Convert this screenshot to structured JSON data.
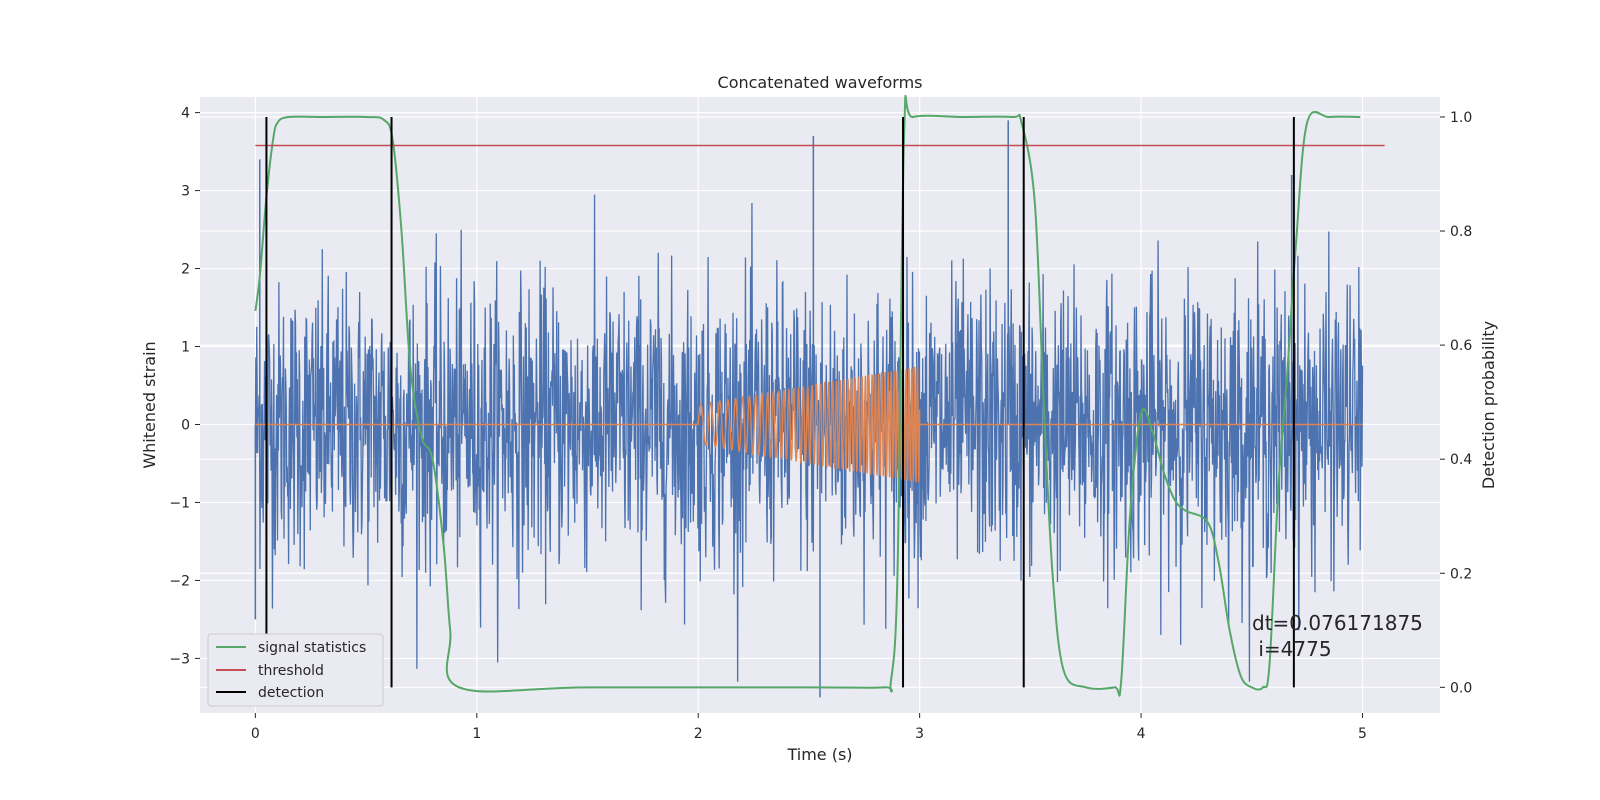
{
  "chart_data": {
    "type": "line",
    "title": "Concatenated waveforms",
    "xlabel": "Time (s)",
    "ylabel": "Whitened strain",
    "y2label": "Detection probability",
    "xlim": [
      -0.25,
      5.35
    ],
    "ylim": [
      -3.7,
      4.2
    ],
    "y2lim": [
      -0.045,
      1.035
    ],
    "xticks": [
      0,
      1,
      2,
      3,
      4,
      5
    ],
    "yticks": [
      -3,
      -2,
      -1,
      0,
      1,
      2,
      3,
      4
    ],
    "y2ticks": [
      0.0,
      0.2,
      0.4,
      0.6,
      0.8,
      1.0
    ],
    "xtick_labels": [
      "0",
      "1",
      "2",
      "3",
      "4",
      "5"
    ],
    "ytick_labels": [
      "−3",
      "−2",
      "−1",
      "0",
      "1",
      "2",
      "3",
      "4"
    ],
    "y2tick_labels": [
      "0.0",
      "0.2",
      "0.4",
      "0.6",
      "0.8",
      "1.0"
    ],
    "grid": true,
    "legend_position": "lower-left",
    "colors": {
      "background": "#eaeaf2",
      "grid": "#ffffff",
      "strain": "#4c72b0",
      "template": "#dd8452",
      "signal_statistics": "#55a868",
      "threshold": "#c44e52",
      "detection": "#000000"
    },
    "series": [
      {
        "name": "strain",
        "axis": "left",
        "description": "noisy whitened strain, amplitude ~±1.3 with spikes up to ±3.5",
        "x_range": [
          0,
          5
        ],
        "noise_std": 0.9,
        "spikes": [
          [
            0.02,
            3.4
          ],
          [
            2.52,
            3.7
          ],
          [
            2.55,
            -3.5
          ],
          [
            3.4,
            3.9
          ],
          [
            0.0,
            -2.5
          ],
          [
            4.68,
            3.2
          ]
        ]
      },
      {
        "name": "template",
        "axis": "left",
        "description": "chirp waveform from 2.0 s to 3.0 s; flat zero elsewhere",
        "x_range": [
          0,
          5
        ],
        "chirp_start": 2.0,
        "chirp_end": 3.0,
        "amp_start": 0.25,
        "amp_end": 0.75,
        "freq_start": 20,
        "freq_end": 80
      },
      {
        "name": "signal statistics",
        "axis": "right",
        "x": [
          0.0,
          0.02,
          0.05,
          0.08,
          0.1,
          0.15,
          0.3,
          0.5,
          0.58,
          0.62,
          0.66,
          0.7,
          0.75,
          0.8,
          0.85,
          0.88,
          0.92,
          1.5,
          2.5,
          2.84,
          2.87,
          2.9,
          2.93,
          2.97,
          3.2,
          3.42,
          3.46,
          3.52,
          3.56,
          3.6,
          3.65,
          3.75,
          3.88,
          3.91,
          3.95,
          4.0,
          4.05,
          4.1,
          4.15,
          4.2,
          4.3,
          4.35,
          4.4,
          4.45,
          4.5,
          4.55,
          4.58,
          4.62,
          4.66,
          4.7,
          4.75,
          4.85,
          4.99
        ],
        "y": [
          0.66,
          0.72,
          0.86,
          0.96,
          0.99,
          1.0,
          1.0,
          1.0,
          0.995,
          0.96,
          0.8,
          0.56,
          0.44,
          0.4,
          0.25,
          0.1,
          0.0,
          0.0,
          0.0,
          0.0,
          0.01,
          0.2,
          0.97,
          1.0,
          1.0,
          1.0,
          0.99,
          0.85,
          0.5,
          0.2,
          0.03,
          0.0,
          0.0,
          0.01,
          0.3,
          0.48,
          0.45,
          0.38,
          0.33,
          0.31,
          0.29,
          0.22,
          0.1,
          0.02,
          0.0,
          0.0,
          0.04,
          0.35,
          0.55,
          0.78,
          0.99,
          1.0,
          1.0
        ]
      },
      {
        "name": "threshold",
        "axis": "right",
        "x": [
          0,
          5.1
        ],
        "y": [
          0.95,
          0.95
        ]
      },
      {
        "name": "detection",
        "axis": "right",
        "type": "vlines",
        "x": [
          0.05,
          0.615,
          2.925,
          3.47,
          4.69
        ],
        "y_range": [
          0.0,
          1.0
        ]
      }
    ],
    "legend": [
      "signal statistics",
      "threshold",
      "detection"
    ],
    "annotation": {
      "line1": "dt=0.076171875",
      "line2": " i=4775"
    }
  }
}
